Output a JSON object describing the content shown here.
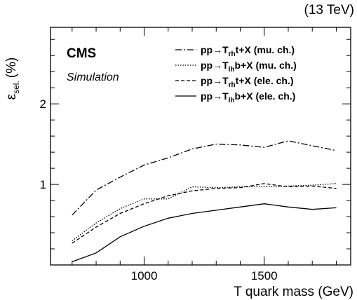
{
  "chart_data": {
    "type": "line",
    "energy_label": "(13 TeV)",
    "experiment": "CMS",
    "subtitle": "Simulation",
    "xlabel": "T quark mass (GeV)",
    "ylabel": "ε",
    "ylabel_sub": "sel.",
    "ylabel_unit": "(%)",
    "xlim": [
      610,
      1860
    ],
    "ylim": [
      0.0,
      2.95
    ],
    "xticks": [
      1000,
      1500
    ],
    "yticks": [
      1,
      2
    ],
    "x": [
      700,
      800,
      900,
      1000,
      1100,
      1200,
      1300,
      1400,
      1500,
      1600,
      1700,
      1800
    ],
    "series": [
      {
        "legend": {
          "pre": "pp→T",
          "sub": "rh",
          "post": "t+X (mu. ch.)"
        },
        "dash": "9 3 2 3",
        "values": [
          0.62,
          0.93,
          1.09,
          1.24,
          1.33,
          1.44,
          1.5,
          1.49,
          1.46,
          1.54,
          1.48,
          1.42
        ]
      },
      {
        "legend": {
          "pre": "pp→T",
          "sub": "lh",
          "post": "b+X (mu. ch.)"
        },
        "dash": "1.5 2",
        "values": [
          0.3,
          0.52,
          0.7,
          0.82,
          0.82,
          0.97,
          0.96,
          0.97,
          0.97,
          0.98,
          0.99,
          1.01
        ]
      },
      {
        "legend": {
          "pre": "pp→T",
          "sub": "rh",
          "post": "t+X (ele. ch.)"
        },
        "dash": "5 3",
        "values": [
          0.27,
          0.47,
          0.64,
          0.76,
          0.86,
          0.92,
          0.95,
          0.96,
          1.01,
          0.97,
          0.98,
          0.95
        ]
      },
      {
        "legend": {
          "pre": "pp→T",
          "sub": "lh",
          "post": "b+X (ele. ch.)"
        },
        "dash": "",
        "values": [
          0.04,
          0.15,
          0.35,
          0.48,
          0.58,
          0.64,
          0.68,
          0.72,
          0.76,
          0.72,
          0.69,
          0.71
        ]
      }
    ]
  }
}
